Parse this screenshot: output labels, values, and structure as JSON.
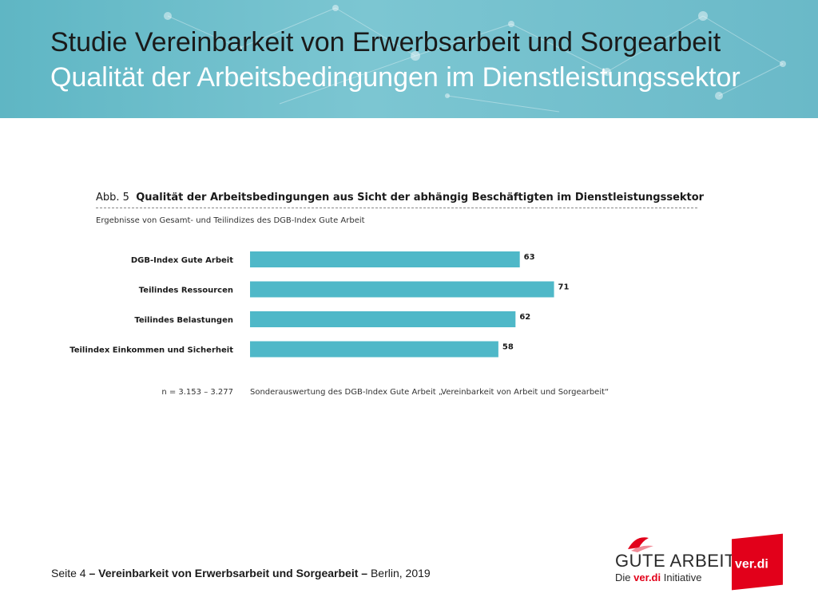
{
  "header": {
    "title": "Studie Vereinbarkeit von Erwerbsarbeit und Sorgearbeit",
    "subtitle": "Qualität der Arbeitsbedingungen im Dienstleistungssektor"
  },
  "figure": {
    "label": "Abb. 5",
    "title": "Qualität der Arbeitsbedingungen aus Sicht der abhängig Beschäftigten im Dienstleistungssektor",
    "subtitle": "Ergebnisse von Gesamt- und Teilindizes des DGB-Index Gute Arbeit",
    "sample_note": "n = 3.153 – 3.277",
    "source_note": "Sonderauswertung des DGB-Index Gute Arbeit „Vereinbarkeit von Arbeit und Sorgearbeit“"
  },
  "chart_data": {
    "type": "bar",
    "orientation": "horizontal",
    "categories": [
      "DGB-Index Gute Arbeit",
      "Teilindes Ressourcen",
      "Teilindes Belastungen",
      "Teilindex Einkommen und Sicherheit"
    ],
    "values": [
      63,
      71,
      62,
      58
    ],
    "xlim": [
      0,
      100
    ],
    "grid": false,
    "bar_color": "#4fb8c8"
  },
  "footer": {
    "page": "Seite 4",
    "sep1": "–",
    "title": "Vereinbarkeit von Erwerbsarbeit und Sorgearbeit",
    "sep2": "–",
    "place_date": "Berlin, 2019"
  },
  "logos": {
    "gute_arbeit": "GUTE ARBEIT",
    "gute_arbeit_sub_1": "Die",
    "gute_arbeit_sub_2": "ver.di",
    "gute_arbeit_sub_3": "Initiative",
    "verdi": "ver.di"
  }
}
